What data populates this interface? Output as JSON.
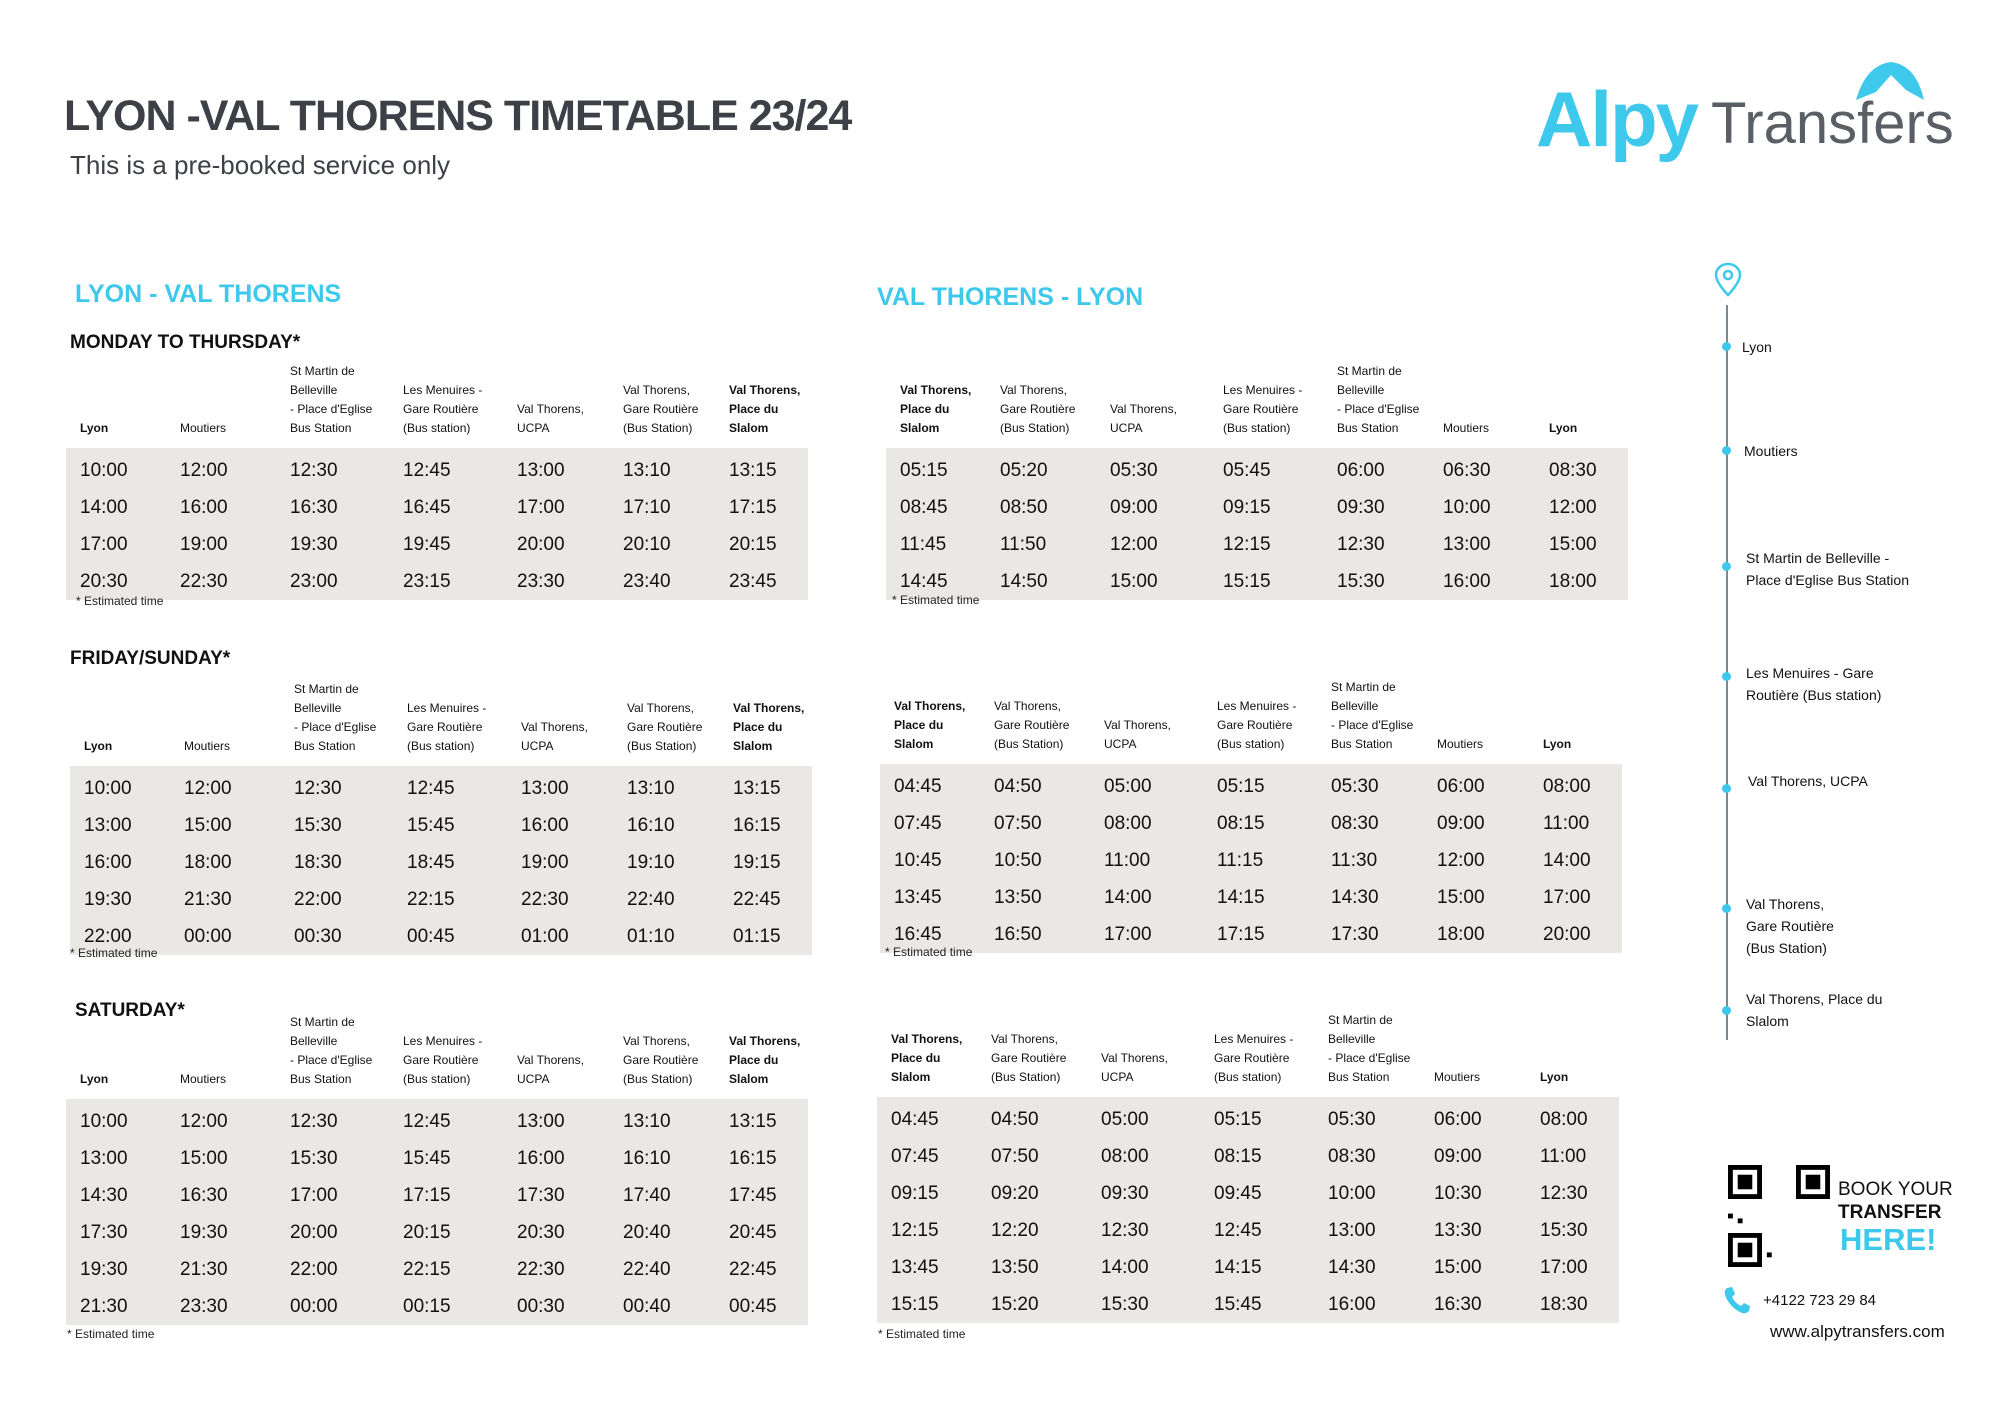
{
  "header": {
    "title": "LYON -VAL THORENS TIMETABLE  23/24",
    "subtitle": "This is a pre-booked service only"
  },
  "logo": {
    "part1": "Alpy",
    "part2": "Transfers"
  },
  "colors": {
    "accent": "#3ec8ec",
    "table_bg": "#eae8e5",
    "title": "#3d4046"
  },
  "sections": {
    "outbound": "LYON -  VAL THORENS",
    "return": "VAL THORENS  - LYON"
  },
  "days": {
    "mon_thu": "MONDAY TO THURSDAY*",
    "fri_sun": "FRIDAY/SUNDAY*",
    "sat": "SATURDAY*"
  },
  "estimated": "* Estimated time",
  "outbound_headers": [
    "Lyon",
    "Moutiers",
    "St Martin de Belleville\n- Place d'Eglise\nBus Station",
    "Les Menuires -\nGare Routière\n(Bus station)",
    "Val Thorens,\nUCPA",
    "Val Thorens,\nGare Routière\n(Bus Station)",
    "Val Thorens,\nPlace du Slalom"
  ],
  "return_headers": [
    "Val Thorens,\nPlace du Slalom",
    "Val Thorens,\nGare Routière\n(Bus Station)",
    "Val Thorens,\nUCPA",
    "Les Menuires -\nGare Routière\n(Bus station)",
    "St Martin de Belleville\n- Place d'Eglise\nBus Station",
    "Moutiers",
    "Lyon"
  ],
  "tables": {
    "mon_thu_out": [
      [
        "10:00",
        "12:00",
        "12:30",
        "12:45",
        "13:00",
        "13:10",
        "13:15"
      ],
      [
        "14:00",
        "16:00",
        "16:30",
        "16:45",
        "17:00",
        "17:10",
        "17:15"
      ],
      [
        "17:00",
        "19:00",
        "19:30",
        "19:45",
        "20:00",
        "20:10",
        "20:15"
      ],
      [
        "20:30",
        "22:30",
        "23:00",
        "23:15",
        "23:30",
        "23:40",
        "23:45"
      ]
    ],
    "mon_thu_ret": [
      [
        "05:15",
        "05:20",
        "05:30",
        "05:45",
        "06:00",
        "06:30",
        "08:30"
      ],
      [
        "08:45",
        "08:50",
        "09:00",
        "09:15",
        "09:30",
        "10:00",
        "12:00"
      ],
      [
        "11:45",
        "11:50",
        "12:00",
        "12:15",
        "12:30",
        "13:00",
        "15:00"
      ],
      [
        "14:45",
        "14:50",
        "15:00",
        "15:15",
        "15:30",
        "16:00",
        "18:00"
      ]
    ],
    "fri_sun_out": [
      [
        "10:00",
        "12:00",
        "12:30",
        "12:45",
        "13:00",
        "13:10",
        "13:15"
      ],
      [
        "13:00",
        "15:00",
        "15:30",
        "15:45",
        "16:00",
        "16:10",
        "16:15"
      ],
      [
        "16:00",
        "18:00",
        "18:30",
        "18:45",
        "19:00",
        "19:10",
        "19:15"
      ],
      [
        "19:30",
        "21:30",
        "22:00",
        "22:15",
        "22:30",
        "22:40",
        "22:45"
      ],
      [
        "22:00",
        "00:00",
        "00:30",
        "00:45",
        "01:00",
        "01:10",
        "01:15"
      ]
    ],
    "fri_sun_ret": [
      [
        "04:45",
        "04:50",
        "05:00",
        "05:15",
        "05:30",
        "06:00",
        "08:00"
      ],
      [
        "07:45",
        "07:50",
        "08:00",
        "08:15",
        "08:30",
        "09:00",
        "11:00"
      ],
      [
        "10:45",
        "10:50",
        "11:00",
        "11:15",
        "11:30",
        "12:00",
        "14:00"
      ],
      [
        "13:45",
        "13:50",
        "14:00",
        "14:15",
        "14:30",
        "15:00",
        "17:00"
      ],
      [
        "16:45",
        "16:50",
        "17:00",
        "17:15",
        "17:30",
        "18:00",
        "20:00"
      ]
    ],
    "sat_out": [
      [
        "10:00",
        "12:00",
        "12:30",
        "12:45",
        "13:00",
        "13:10",
        "13:15"
      ],
      [
        "13:00",
        "15:00",
        "15:30",
        "15:45",
        "16:00",
        "16:10",
        "16:15"
      ],
      [
        "14:30",
        "16:30",
        "17:00",
        "17:15",
        "17:30",
        "17:40",
        "17:45"
      ],
      [
        "17:30",
        "19:30",
        "20:00",
        "20:15",
        "20:30",
        "20:40",
        "20:45"
      ],
      [
        "19:30",
        "21:30",
        "22:00",
        "22:15",
        "22:30",
        "22:40",
        "22:45"
      ],
      [
        "21:30",
        "23:30",
        "00:00",
        "00:15",
        "00:30",
        "00:40",
        "00:45"
      ]
    ],
    "sat_ret": [
      [
        "04:45",
        "04:50",
        "05:00",
        "05:15",
        "05:30",
        "06:00",
        "08:00"
      ],
      [
        "07:45",
        "07:50",
        "08:00",
        "08:15",
        "08:30",
        "09:00",
        "11:00"
      ],
      [
        "09:15",
        "09:20",
        "09:30",
        "09:45",
        "10:00",
        "10:30",
        "12:30"
      ],
      [
        "12:15",
        "12:20",
        "12:30",
        "12:45",
        "13:00",
        "13:30",
        "15:30"
      ],
      [
        "13:45",
        "13:50",
        "14:00",
        "14:15",
        "14:30",
        "15:00",
        "17:00"
      ],
      [
        "15:15",
        "15:20",
        "15:30",
        "15:45",
        "16:00",
        "16:30",
        "18:30"
      ]
    ]
  },
  "route": {
    "icon": "map-pin-icon",
    "stops": [
      "Lyon",
      "Moutiers",
      "St Martin de Belleville -\nPlace d'Eglise Bus Station",
      "Les Menuires - Gare\nRoutière (Bus station)",
      "Val Thorens, UCPA",
      "Val Thorens,\nGare Routière\n(Bus Station)",
      "Val Thorens, Place du\nSlalom"
    ]
  },
  "booking": {
    "line1": "BOOK YOUR",
    "line2": "TRANSFER",
    "line3": "HERE!",
    "phone": "+4122 723 29 84",
    "url": "www.alpytransfers.com"
  }
}
